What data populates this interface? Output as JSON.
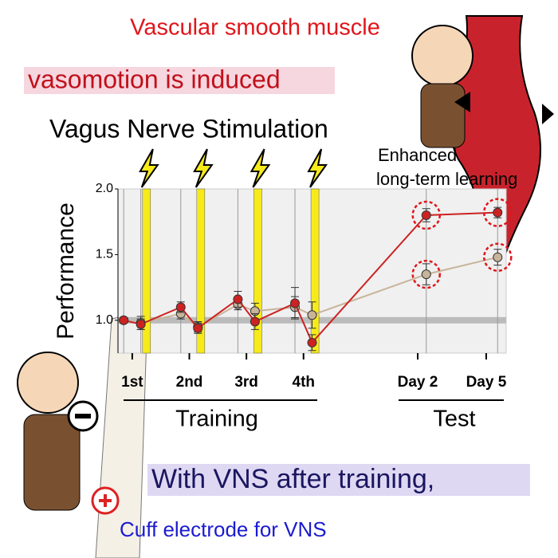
{
  "chart_data": {
    "type": "line",
    "title": "Vagus Nerve Stimulation",
    "top_title": "Vascular smooth muscle",
    "subtitle": "vasomotion is induced",
    "annotation": [
      "Enhanced",
      "long-term learning"
    ],
    "y_label": "Performance",
    "group_labels": [
      "Training",
      "Test"
    ],
    "caption": "With VNS after training,",
    "footnote": "Cuff electrode for VNS",
    "xlim": [
      0.75,
      7.55
    ],
    "xticks": [
      {
        "value": 1,
        "label": "1st"
      },
      {
        "value": 2,
        "label": "2nd"
      },
      {
        "value": 3,
        "label": "3rd"
      },
      {
        "value": 4,
        "label": "4th"
      },
      {
        "value": 6,
        "label": "Day 2"
      },
      {
        "value": 7.2,
        "label": "Day 5"
      }
    ],
    "ylim": [
      0.75,
      2.0
    ],
    "yticks": [
      {
        "value": 1.0,
        "label": "1.0"
      },
      {
        "value": 1.5,
        "label": "1.5"
      },
      {
        "value": 2.0,
        "label": "2.0"
      }
    ],
    "stimulations": [
      1.25,
      2.2,
      3.2,
      4.2
    ],
    "x": [
      0.85,
      1.15,
      1.85,
      2.15,
      2.85,
      3.15,
      3.85,
      4.15,
      6.15,
      7.4
    ],
    "series": [
      {
        "color": "#c8b49a",
        "values": [
          1.0,
          0.98,
          1.05,
          0.95,
          1.12,
          1.07,
          1.1,
          1.04,
          1.35,
          1.48
        ],
        "errors": [
          0.02,
          0.05,
          0.04,
          0.04,
          0.04,
          0.06,
          0.08,
          0.1,
          0.08,
          0.06
        ]
      },
      {
        "color": "#cc2222",
        "values": [
          1.0,
          0.97,
          1.1,
          0.94,
          1.16,
          0.99,
          1.13,
          0.83,
          1.8,
          1.82
        ],
        "errors": [
          0.02,
          0.04,
          0.04,
          0.04,
          0.06,
          0.06,
          0.12,
          0.06,
          0.05,
          0.04
        ]
      }
    ]
  }
}
